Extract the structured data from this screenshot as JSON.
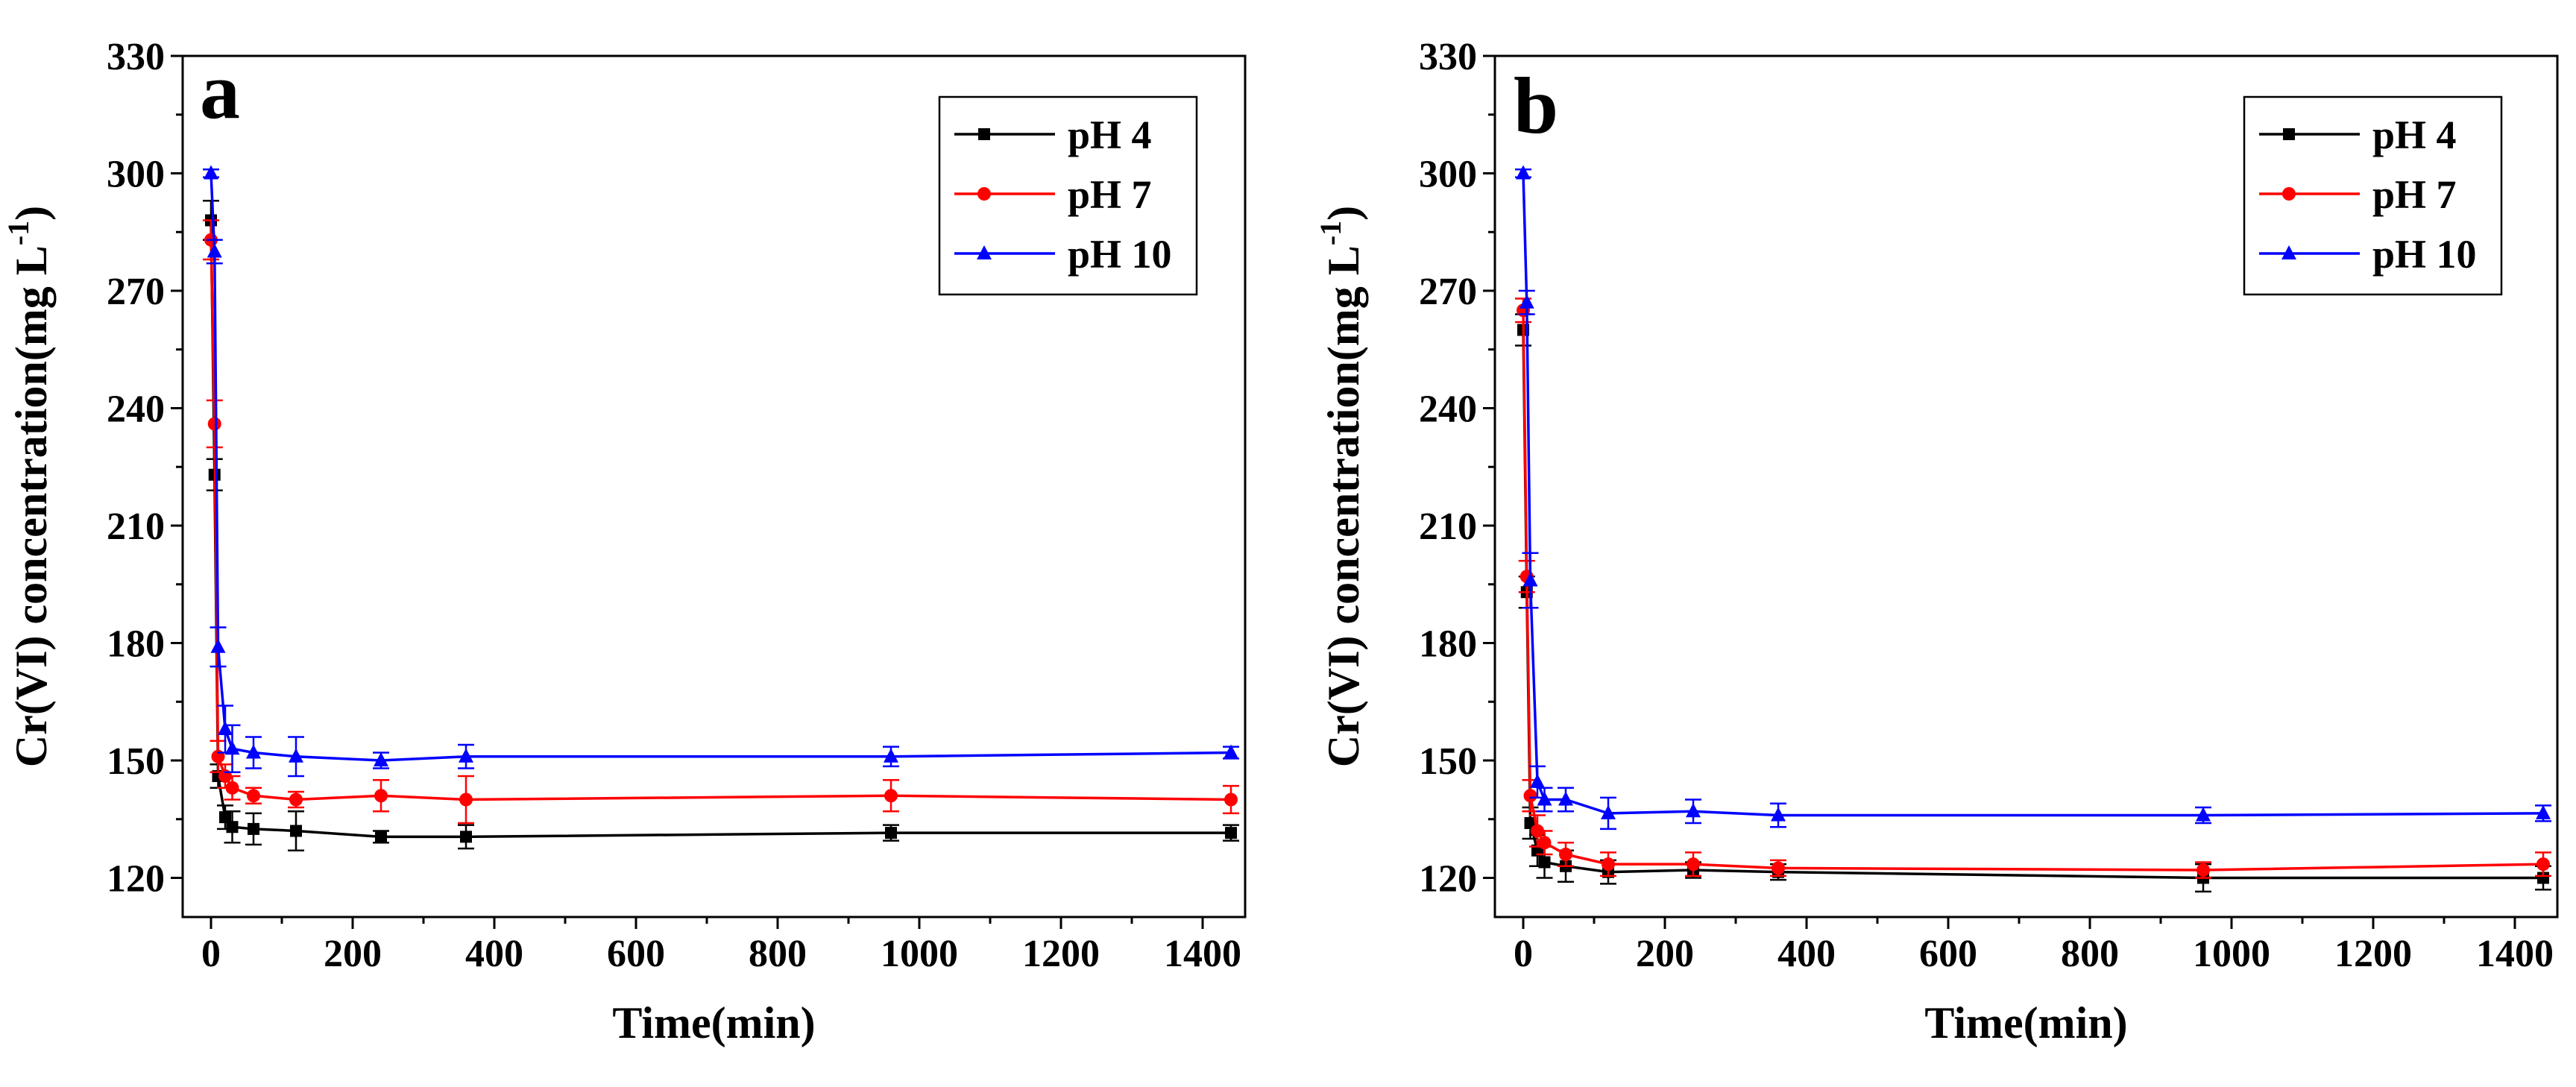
{
  "figure": {
    "panels": [
      "a",
      "b"
    ]
  },
  "colors": {
    "pH 4": "#000000",
    "pH 7": "#ff0000",
    "pH 10": "#0000ff",
    "axis": "#000000"
  },
  "chart_data": [
    {
      "type": "line",
      "panel_label": "a",
      "title": "",
      "xlabel": "Time(min)",
      "ylabel": "Cr(VI) concentration(mg L-1)",
      "xlim": [
        -40,
        1460
      ],
      "ylim": [
        110,
        330
      ],
      "xticks": [
        0,
        200,
        400,
        600,
        800,
        1000,
        1200,
        1400
      ],
      "yticks": [
        120,
        150,
        180,
        210,
        240,
        270,
        300,
        330
      ],
      "legend_position": "top-right",
      "x": [
        0,
        5,
        10,
        20,
        30,
        60,
        120,
        240,
        360,
        960,
        1440
      ],
      "series": [
        {
          "name": "pH 4",
          "marker": "square",
          "values": [
            288,
            223,
            146,
            135.5,
            133,
            132.5,
            132,
            130.5,
            130.5,
            131.5,
            131.5
          ],
          "errors": [
            5,
            4,
            3,
            3,
            4,
            4,
            5,
            1.5,
            3,
            2,
            2
          ]
        },
        {
          "name": "pH 7",
          "marker": "circle",
          "values": [
            283,
            236,
            151,
            146,
            143,
            141,
            140,
            141,
            140,
            141,
            140
          ],
          "errors": [
            5,
            6,
            4,
            3,
            3,
            2,
            2,
            4,
            6,
            4,
            3.5
          ]
        },
        {
          "name": "pH 10",
          "marker": "triangle",
          "values": [
            300,
            280,
            179,
            158,
            153,
            152,
            151,
            150,
            151,
            151,
            152
          ],
          "errors": [
            1,
            3,
            5,
            6,
            6,
            4,
            5,
            2,
            3,
            2.5,
            1.5
          ]
        }
      ]
    },
    {
      "type": "line",
      "panel_label": "b",
      "title": "",
      "xlabel": "Time(min)",
      "ylabel": "Cr(VI) concentration(mg L-1)",
      "xlim": [
        -40,
        1460
      ],
      "ylim": [
        110,
        330
      ],
      "xticks": [
        0,
        200,
        400,
        600,
        800,
        1000,
        1200,
        1400
      ],
      "yticks": [
        120,
        150,
        180,
        210,
        240,
        270,
        300,
        330
      ],
      "legend_position": "top-right",
      "x": [
        0,
        5,
        10,
        20,
        30,
        60,
        120,
        240,
        360,
        960,
        1440
      ],
      "series": [
        {
          "name": "pH 4",
          "marker": "square",
          "values": [
            260,
            193,
            134,
            127,
            124,
            123,
            121.5,
            122,
            121.5,
            120,
            120
          ],
          "errors": [
            4,
            4,
            4,
            4,
            4,
            4,
            3,
            2,
            2,
            3.5,
            3
          ]
        },
        {
          "name": "pH 7",
          "marker": "circle",
          "values": [
            265,
            197,
            141,
            132,
            129,
            126,
            123.5,
            123.5,
            122.5,
            122,
            123.5
          ],
          "errors": [
            3,
            4,
            4,
            4,
            3,
            3,
            3,
            3,
            2,
            2,
            3
          ]
        },
        {
          "name": "pH 10",
          "marker": "triangle",
          "values": [
            300,
            267,
            196,
            144.5,
            140,
            140,
            136.5,
            137,
            136,
            136,
            136.5
          ],
          "errors": [
            1,
            3,
            7,
            4,
            3,
            3,
            4,
            3,
            3,
            2,
            2
          ]
        }
      ]
    }
  ]
}
